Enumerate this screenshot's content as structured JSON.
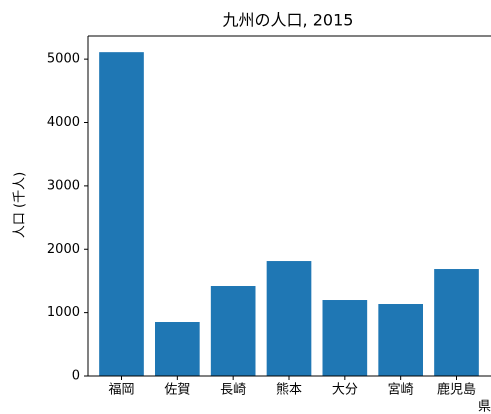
{
  "chart_data": {
    "type": "bar",
    "title": "九州の人口, 2015",
    "ylabel": "人口 (千人)",
    "xlabel": "県",
    "categories": [
      "福岡",
      "佐賀",
      "長崎",
      "熊本",
      "大分",
      "宮崎",
      "鹿児島"
    ],
    "values": [
      5110,
      852,
      1420,
      1814,
      1199,
      1136,
      1688
    ],
    "color": "#1f77b4",
    "ylim": [
      0,
      5365
    ],
    "yticks": [
      0,
      1000,
      2000,
      3000,
      4000,
      5000
    ],
    "grid": false
  }
}
